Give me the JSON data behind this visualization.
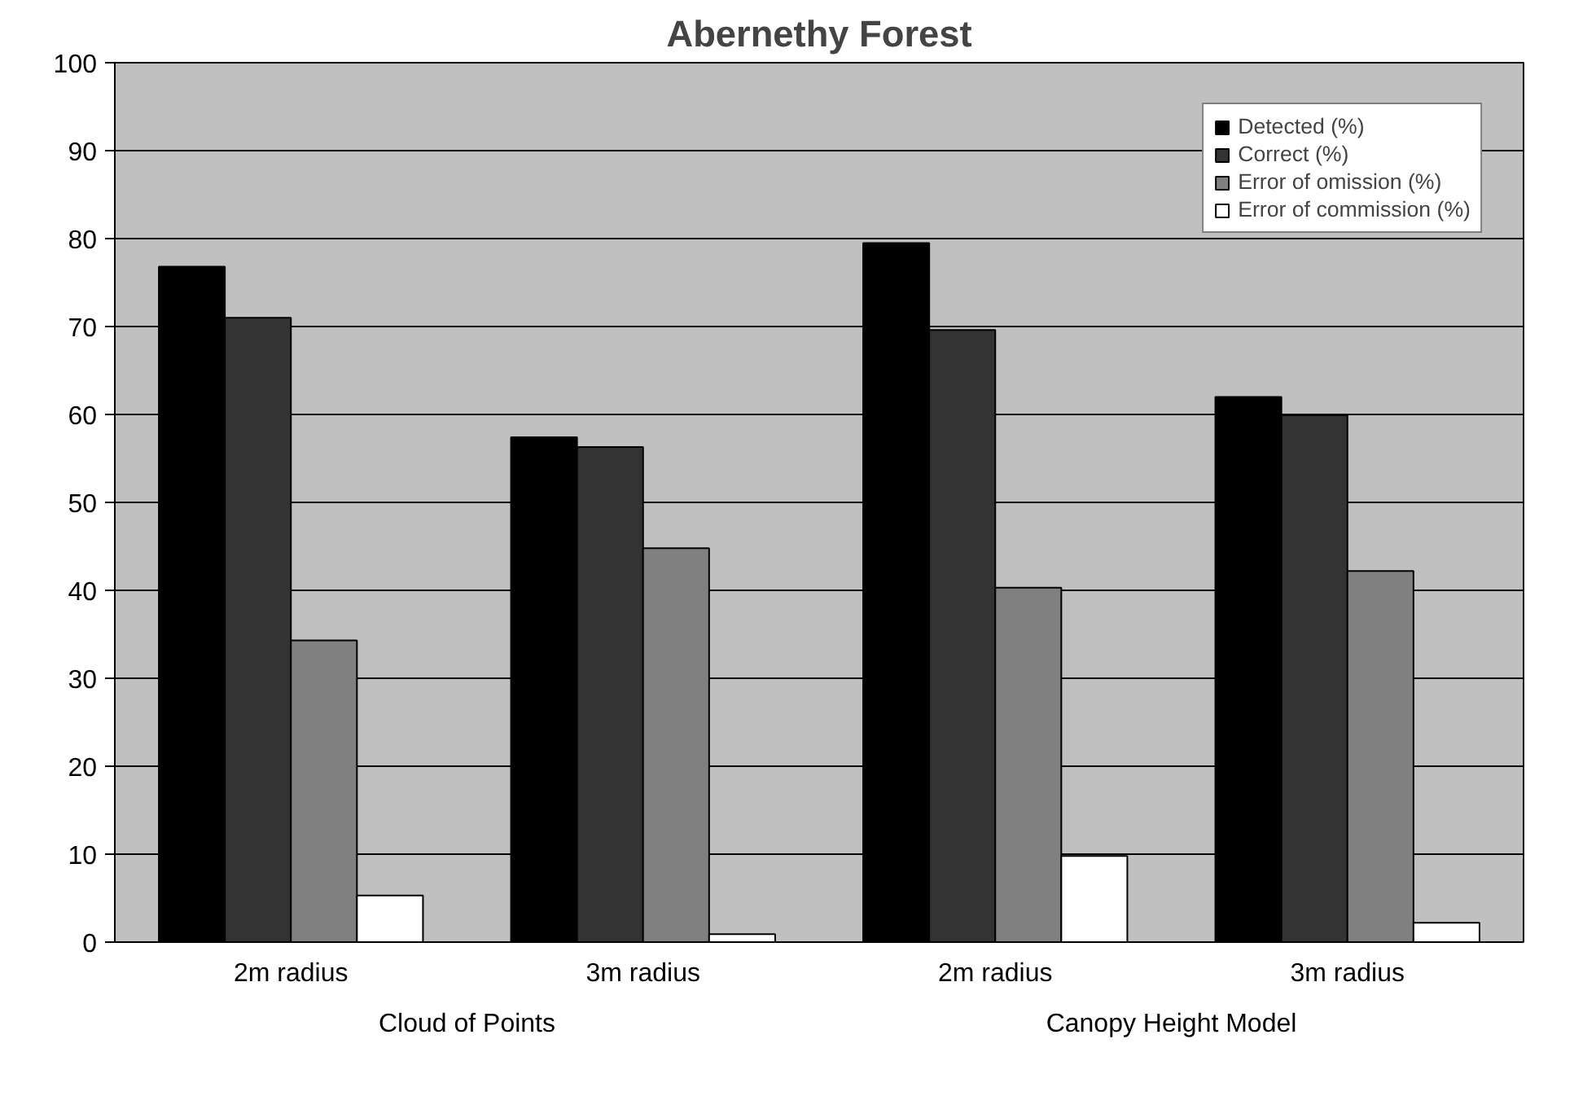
{
  "chart_data": {
    "type": "bar",
    "title": "Abernethy Forest",
    "categories": [
      "2m radius",
      "3m radius",
      "2m radius",
      "3m radius"
    ],
    "series": [
      {
        "name": "Detected (%)",
        "color": "#000000",
        "values": [
          76.8,
          57.4,
          79.5,
          62.0
        ]
      },
      {
        "name": "Correct (%)",
        "color": "#333333",
        "values": [
          71.0,
          56.3,
          69.6,
          59.9
        ]
      },
      {
        "name": "Error of omission (%)",
        "color": "#808080",
        "values": [
          34.3,
          44.8,
          40.3,
          42.2
        ]
      },
      {
        "name": "Error of commission (%)",
        "color": "#ffffff",
        "values": [
          5.3,
          0.9,
          9.8,
          2.2
        ]
      }
    ],
    "annotations": [
      "Cloud of Points",
      "Canopy Height Model"
    ],
    "ylim": [
      0,
      100
    ],
    "yticks": [
      0,
      10,
      20,
      30,
      40,
      50,
      60,
      70,
      80,
      90,
      100
    ],
    "grid": "y",
    "legend": "top right"
  }
}
